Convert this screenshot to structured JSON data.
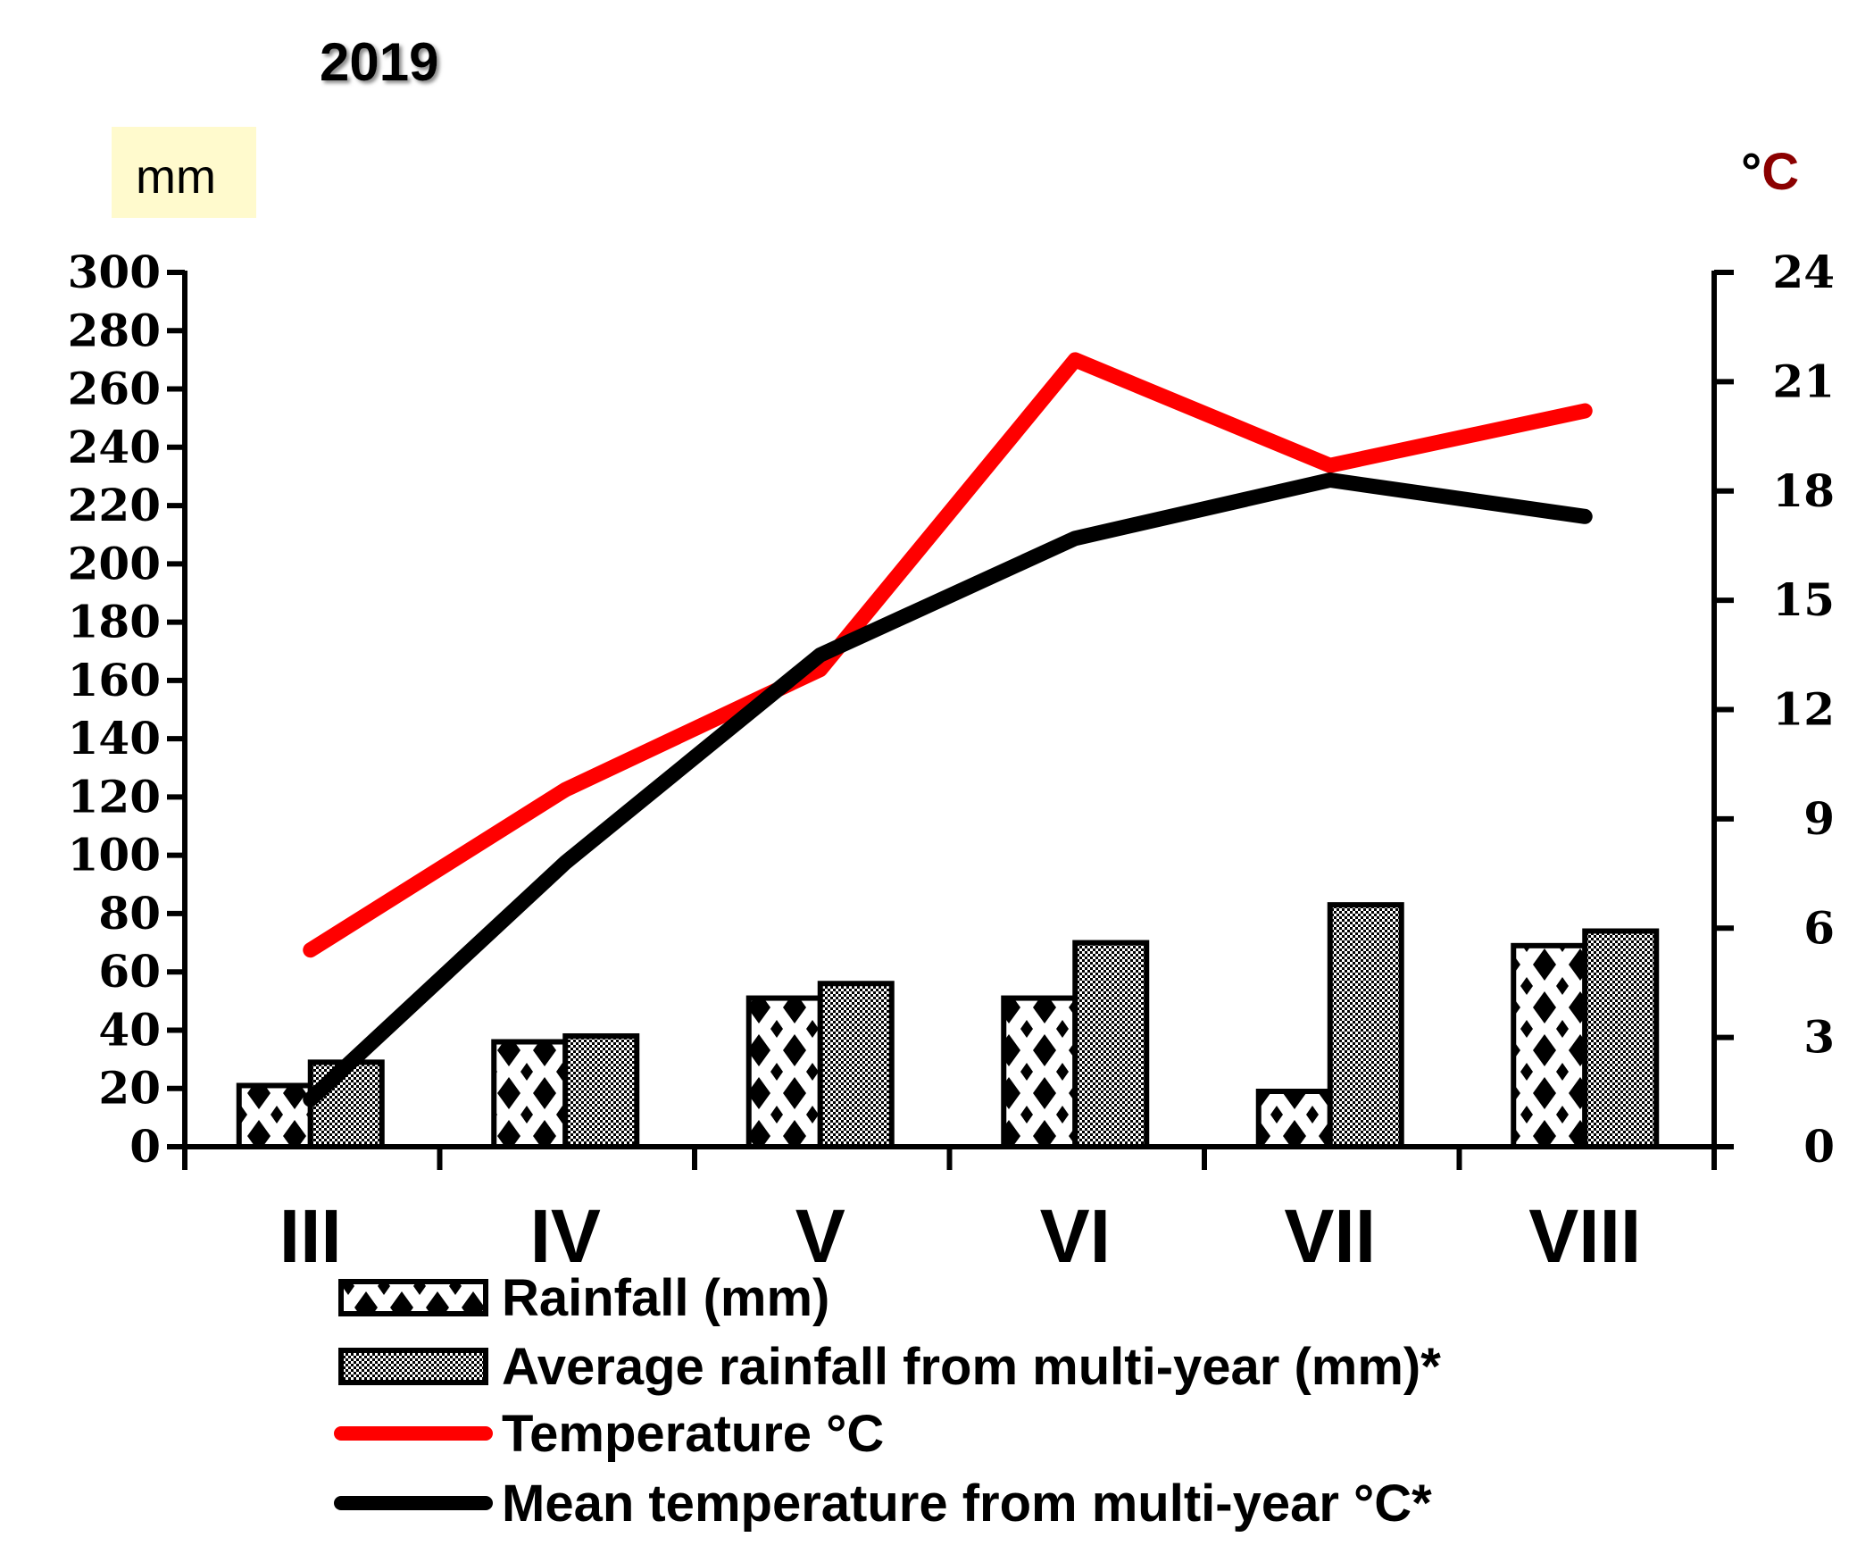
{
  "chart_data": {
    "type": "bar+line",
    "title": "2019",
    "left_unit": "mm",
    "right_unit_symbol": "°",
    "right_unit_letter": "C",
    "categories": [
      "III",
      "IV",
      "V",
      "VI",
      "VII",
      "VIII"
    ],
    "y_left": {
      "min": 0,
      "max": 300,
      "ticks": [
        0,
        20,
        40,
        60,
        80,
        100,
        120,
        140,
        160,
        180,
        200,
        220,
        240,
        260,
        280,
        300
      ]
    },
    "y_right": {
      "min": 0,
      "max": 24,
      "ticks": [
        0,
        3,
        6,
        9,
        12,
        15,
        18,
        21,
        24
      ]
    },
    "bar_series": [
      {
        "name": "Rainfall (mm)",
        "values": [
          21,
          36,
          51,
          51,
          19,
          69
        ],
        "pattern": "dots"
      },
      {
        "name": "Average rainfall from multi-year (mm)*",
        "values": [
          29,
          38,
          56,
          70,
          83,
          74
        ],
        "pattern": "checker"
      }
    ],
    "line_series": [
      {
        "name": "Temperature °C",
        "values": [
          5.4,
          9.8,
          13.1,
          21.6,
          18.7,
          20.2
        ],
        "color": "#ff0000"
      },
      {
        "name": "Mean temperature from multi-year °C*",
        "values": [
          1.3,
          7.8,
          13.5,
          16.7,
          18.3,
          17.3
        ],
        "color": "#000000"
      }
    ],
    "colors": {
      "right_unit_letter": "#8b0000",
      "unit_box_bg": "#fffacd"
    }
  }
}
